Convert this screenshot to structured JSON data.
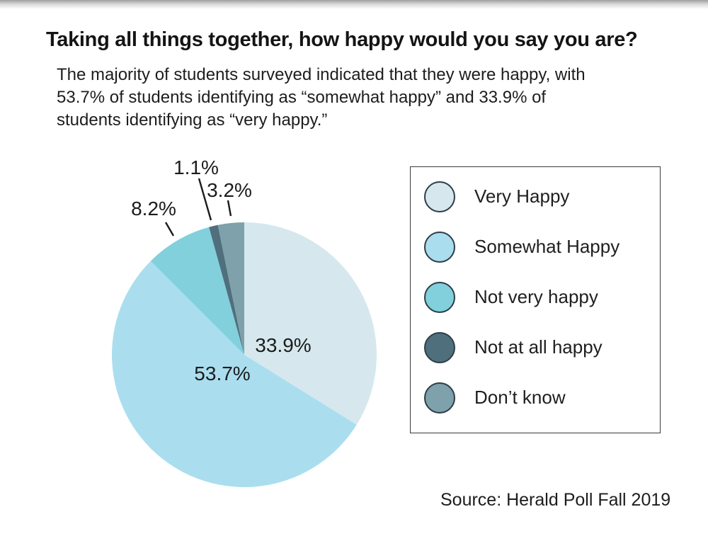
{
  "page": {
    "title": "Taking all things together, how happy would you say you are?",
    "subtitle_lines": [
      "The majority of students surveyed indicated that they were happy, with",
      "53.7% of students identifying as “somewhat happy” and 33.9% of",
      "students identifying as “very happy.”"
    ],
    "source": "Source: Herald Poll Fall 2019"
  },
  "chart_data": {
    "type": "pie",
    "title": "Taking all things together, how happy would you say you are?",
    "categories": [
      "Very Happy",
      "Somewhat Happy",
      "Not very happy",
      "Not at all happy",
      "Don’t know"
    ],
    "values": [
      33.9,
      53.7,
      8.2,
      1.1,
      3.2
    ],
    "unit": "%",
    "colors": [
      "#d6e8ee",
      "#aadeef",
      "#81d0dc",
      "#506f7c",
      "#7ea1ab"
    ],
    "start_angle_deg": 0,
    "direction": "clockwise",
    "legend_position": "right",
    "labels": [
      {
        "text": "33.9%",
        "placement": "inside"
      },
      {
        "text": "53.7%",
        "placement": "inside"
      },
      {
        "text": "8.2%",
        "placement": "callout"
      },
      {
        "text": "1.1%",
        "placement": "callout"
      },
      {
        "text": "3.2%",
        "placement": "callout"
      }
    ],
    "source": "Source: Herald Poll Fall 2019"
  },
  "legend": {
    "items": [
      {
        "label": "Very Happy",
        "color": "#d6e8ee"
      },
      {
        "label": "Somewhat Happy",
        "color": "#aadeef"
      },
      {
        "label": "Not very happy",
        "color": "#81d0dc"
      },
      {
        "label": "Not at all happy",
        "color": "#506f7c"
      },
      {
        "label": "Don’t know",
        "color": "#7ea1ab"
      }
    ],
    "swatch_outline": "#2c3e48"
  }
}
